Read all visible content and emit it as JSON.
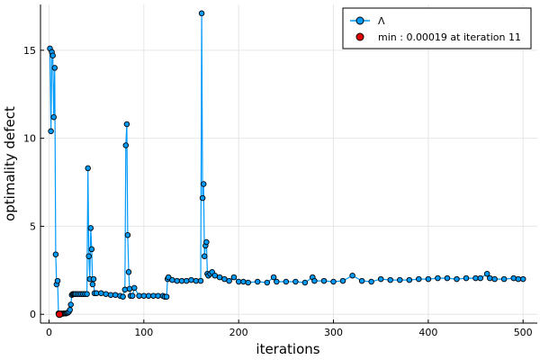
{
  "chart_data": {
    "type": "line",
    "xlabel": "iterations",
    "ylabel": "optimality defect",
    "xlim": [
      -9,
      515
    ],
    "ylim": [
      -0.5,
      17.6
    ],
    "xticks": [
      0,
      100,
      200,
      300,
      400,
      500
    ],
    "yticks": [
      0,
      5,
      10,
      15
    ],
    "grid": true,
    "legend_position": "top-right",
    "series": [
      {
        "name": "Λ",
        "color": "#009AFA",
        "marker": "circle",
        "x": [
          1,
          2,
          3,
          4,
          5,
          6,
          7,
          8,
          9,
          10,
          11,
          12,
          13,
          14,
          15,
          16,
          17,
          18,
          19,
          20,
          21,
          22,
          23,
          24,
          25,
          26,
          27,
          28,
          30,
          32,
          34,
          36,
          38,
          40,
          41,
          42,
          43,
          44,
          45,
          46,
          47,
          48,
          50,
          55,
          60,
          65,
          70,
          75,
          78,
          80,
          81,
          82,
          83,
          84,
          85,
          86,
          88,
          90,
          95,
          100,
          105,
          110,
          115,
          120,
          122,
          124,
          125,
          126,
          130,
          135,
          140,
          145,
          150,
          155,
          160,
          161,
          162,
          163,
          164,
          165,
          166,
          167,
          168,
          170,
          172,
          175,
          180,
          185,
          190,
          195,
          200,
          205,
          210,
          220,
          230,
          237,
          240,
          250,
          260,
          270,
          278,
          280,
          290,
          300,
          310,
          320,
          330,
          340,
          350,
          360,
          370,
          380,
          390,
          400,
          410,
          420,
          430,
          440,
          450,
          455,
          462,
          465,
          470,
          480,
          490,
          495,
          500
        ],
        "y": [
          15.1,
          10.4,
          14.9,
          14.7,
          11.2,
          14.0,
          3.4,
          1.7,
          1.9,
          0.05,
          0.02,
          0.03,
          0.04,
          0.03,
          0.04,
          0.05,
          0.05,
          0.05,
          0.08,
          0.1,
          0.15,
          0.25,
          0.55,
          1.1,
          1.15,
          1.15,
          1.15,
          1.15,
          1.15,
          1.15,
          1.15,
          1.15,
          1.15,
          1.15,
          8.3,
          3.3,
          2.0,
          4.9,
          3.7,
          1.7,
          2.0,
          1.2,
          1.2,
          1.2,
          1.15,
          1.1,
          1.1,
          1.05,
          1.0,
          1.4,
          9.6,
          10.8,
          4.5,
          2.4,
          1.45,
          1.05,
          1.05,
          1.5,
          1.05,
          1.05,
          1.05,
          1.05,
          1.05,
          1.05,
          1.0,
          1.0,
          2.0,
          2.1,
          1.95,
          1.9,
          1.9,
          1.9,
          1.95,
          1.9,
          1.9,
          17.1,
          6.6,
          7.4,
          3.3,
          3.9,
          4.1,
          2.3,
          2.2,
          2.3,
          2.4,
          2.2,
          2.1,
          2.0,
          1.9,
          2.1,
          1.85,
          1.85,
          1.8,
          1.85,
          1.8,
          2.1,
          1.85,
          1.85,
          1.85,
          1.8,
          2.1,
          1.9,
          1.9,
          1.85,
          1.9,
          2.2,
          1.9,
          1.85,
          2.0,
          1.95,
          1.95,
          1.95,
          2.0,
          2.0,
          2.05,
          2.05,
          2.0,
          2.05,
          2.05,
          2.05,
          2.3,
          2.05,
          2.0,
          2.0,
          2.05,
          2.0,
          2.0
        ]
      },
      {
        "name": "min : 0.00019 at iteration 11",
        "color": "#E30000",
        "marker": "circle",
        "x": [
          11
        ],
        "y": [
          0.00019
        ]
      }
    ]
  }
}
